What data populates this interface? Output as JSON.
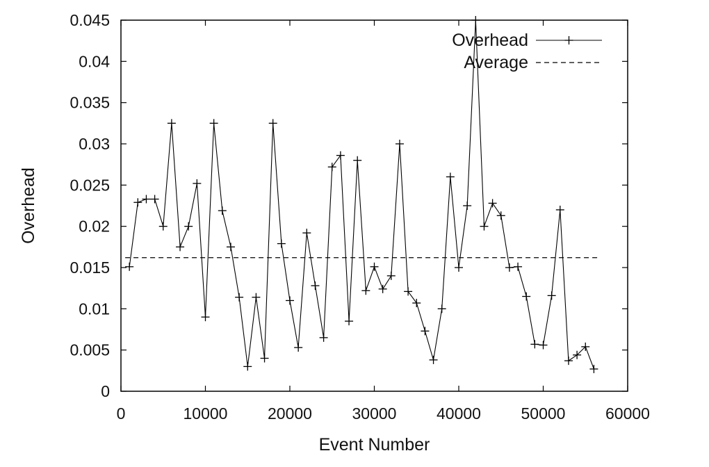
{
  "chart_data": {
    "type": "line",
    "title": "",
    "xlabel": "Event Number",
    "ylabel": "Overhead",
    "xlim": [
      0,
      60000
    ],
    "ylim": [
      0,
      0.045
    ],
    "x_ticks": [
      "0",
      "10000",
      "20000",
      "30000",
      "40000",
      "50000",
      "60000"
    ],
    "y_ticks": [
      "0",
      "0.005",
      "0.01",
      "0.015",
      "0.02",
      "0.025",
      "0.03",
      "0.035",
      "0.04",
      "0.045"
    ],
    "grid": false,
    "legend_position": "top-right",
    "series": [
      {
        "name": "Overhead",
        "style": "solid-with-plus-markers",
        "color": "#000000",
        "x": [
          1000,
          2000,
          3000,
          4000,
          5000,
          6000,
          7000,
          8000,
          9000,
          10000,
          11000,
          12000,
          13000,
          14000,
          15000,
          16000,
          17000,
          18000,
          19000,
          20000,
          21000,
          22000,
          23000,
          24000,
          25000,
          26000,
          27000,
          28000,
          29000,
          30000,
          31000,
          32000,
          33000,
          34000,
          35000,
          36000,
          37000,
          38000,
          39000,
          40000,
          41000,
          42000,
          43000,
          44000,
          45000,
          46000,
          47000,
          48000,
          49000,
          50000,
          51000,
          52000,
          53000,
          54000,
          55000,
          56000
        ],
        "y": [
          0.0151,
          0.0229,
          0.0233,
          0.0233,
          0.02,
          0.0325,
          0.0175,
          0.02,
          0.0252,
          0.009,
          0.0325,
          0.0219,
          0.0175,
          0.0114,
          0.003,
          0.0114,
          0.004,
          0.0325,
          0.0179,
          0.011,
          0.0053,
          0.0192,
          0.0128,
          0.0065,
          0.0272,
          0.0286,
          0.0085,
          0.028,
          0.0122,
          0.0151,
          0.0124,
          0.014,
          0.03,
          0.0121,
          0.0107,
          0.0073,
          0.0038,
          0.01,
          0.026,
          0.015,
          0.0225,
          0.045,
          0.02,
          0.0228,
          0.0213,
          0.015,
          0.0151,
          0.0115,
          0.0057,
          0.0056,
          0.0116,
          0.022,
          0.0037,
          0.0044,
          0.0054,
          0.0027
        ]
      },
      {
        "name": "Average",
        "style": "dashed",
        "color": "#000000",
        "x": [
          500,
          56500
        ],
        "y": [
          0.0162,
          0.0162
        ]
      }
    ]
  }
}
